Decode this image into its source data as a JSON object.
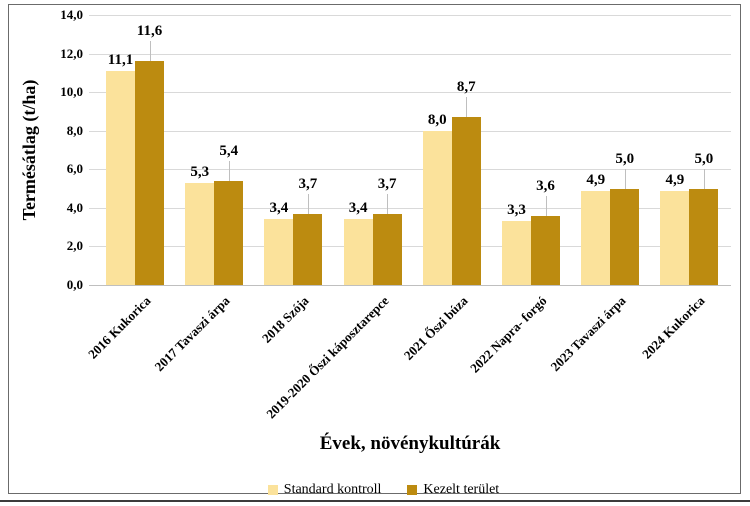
{
  "chart_data": {
    "type": "bar",
    "title": "",
    "xlabel": "Évek, növénykultúrák",
    "ylabel": "Termésátlag (t/ha)",
    "ylim": [
      0,
      14
    ],
    "ytick_step": 2,
    "decimal_separator": ",",
    "grid": true,
    "legend_position": "bottom",
    "categories": [
      "2016 Kukorica",
      "2017 Tavaszi árpa",
      "2018 Szója",
      "2019-2020 Őszi káposztarepce",
      "2021 Őszi búza",
      "2022 Napra- forgó",
      "2023 Tavaszi árpa",
      "2024 Kukorica"
    ],
    "series": [
      {
        "name": "Standard kontroll",
        "color": "#FBE29B",
        "values": [
          11.1,
          5.3,
          3.4,
          3.4,
          8.0,
          3.3,
          4.9,
          4.9
        ]
      },
      {
        "name": "Kezelt terület",
        "color": "#BC8B10",
        "values": [
          11.6,
          5.4,
          3.7,
          3.7,
          8.7,
          3.6,
          5.0,
          5.0
        ]
      }
    ],
    "colors": {
      "gridline": "#D9D9D9",
      "axis_line": "#BFBFBF",
      "leader_line": "#BFBFBF",
      "frame_border": "#6B6B6B",
      "bottom_rule": "#3C3C3C",
      "text": "#000000"
    }
  }
}
